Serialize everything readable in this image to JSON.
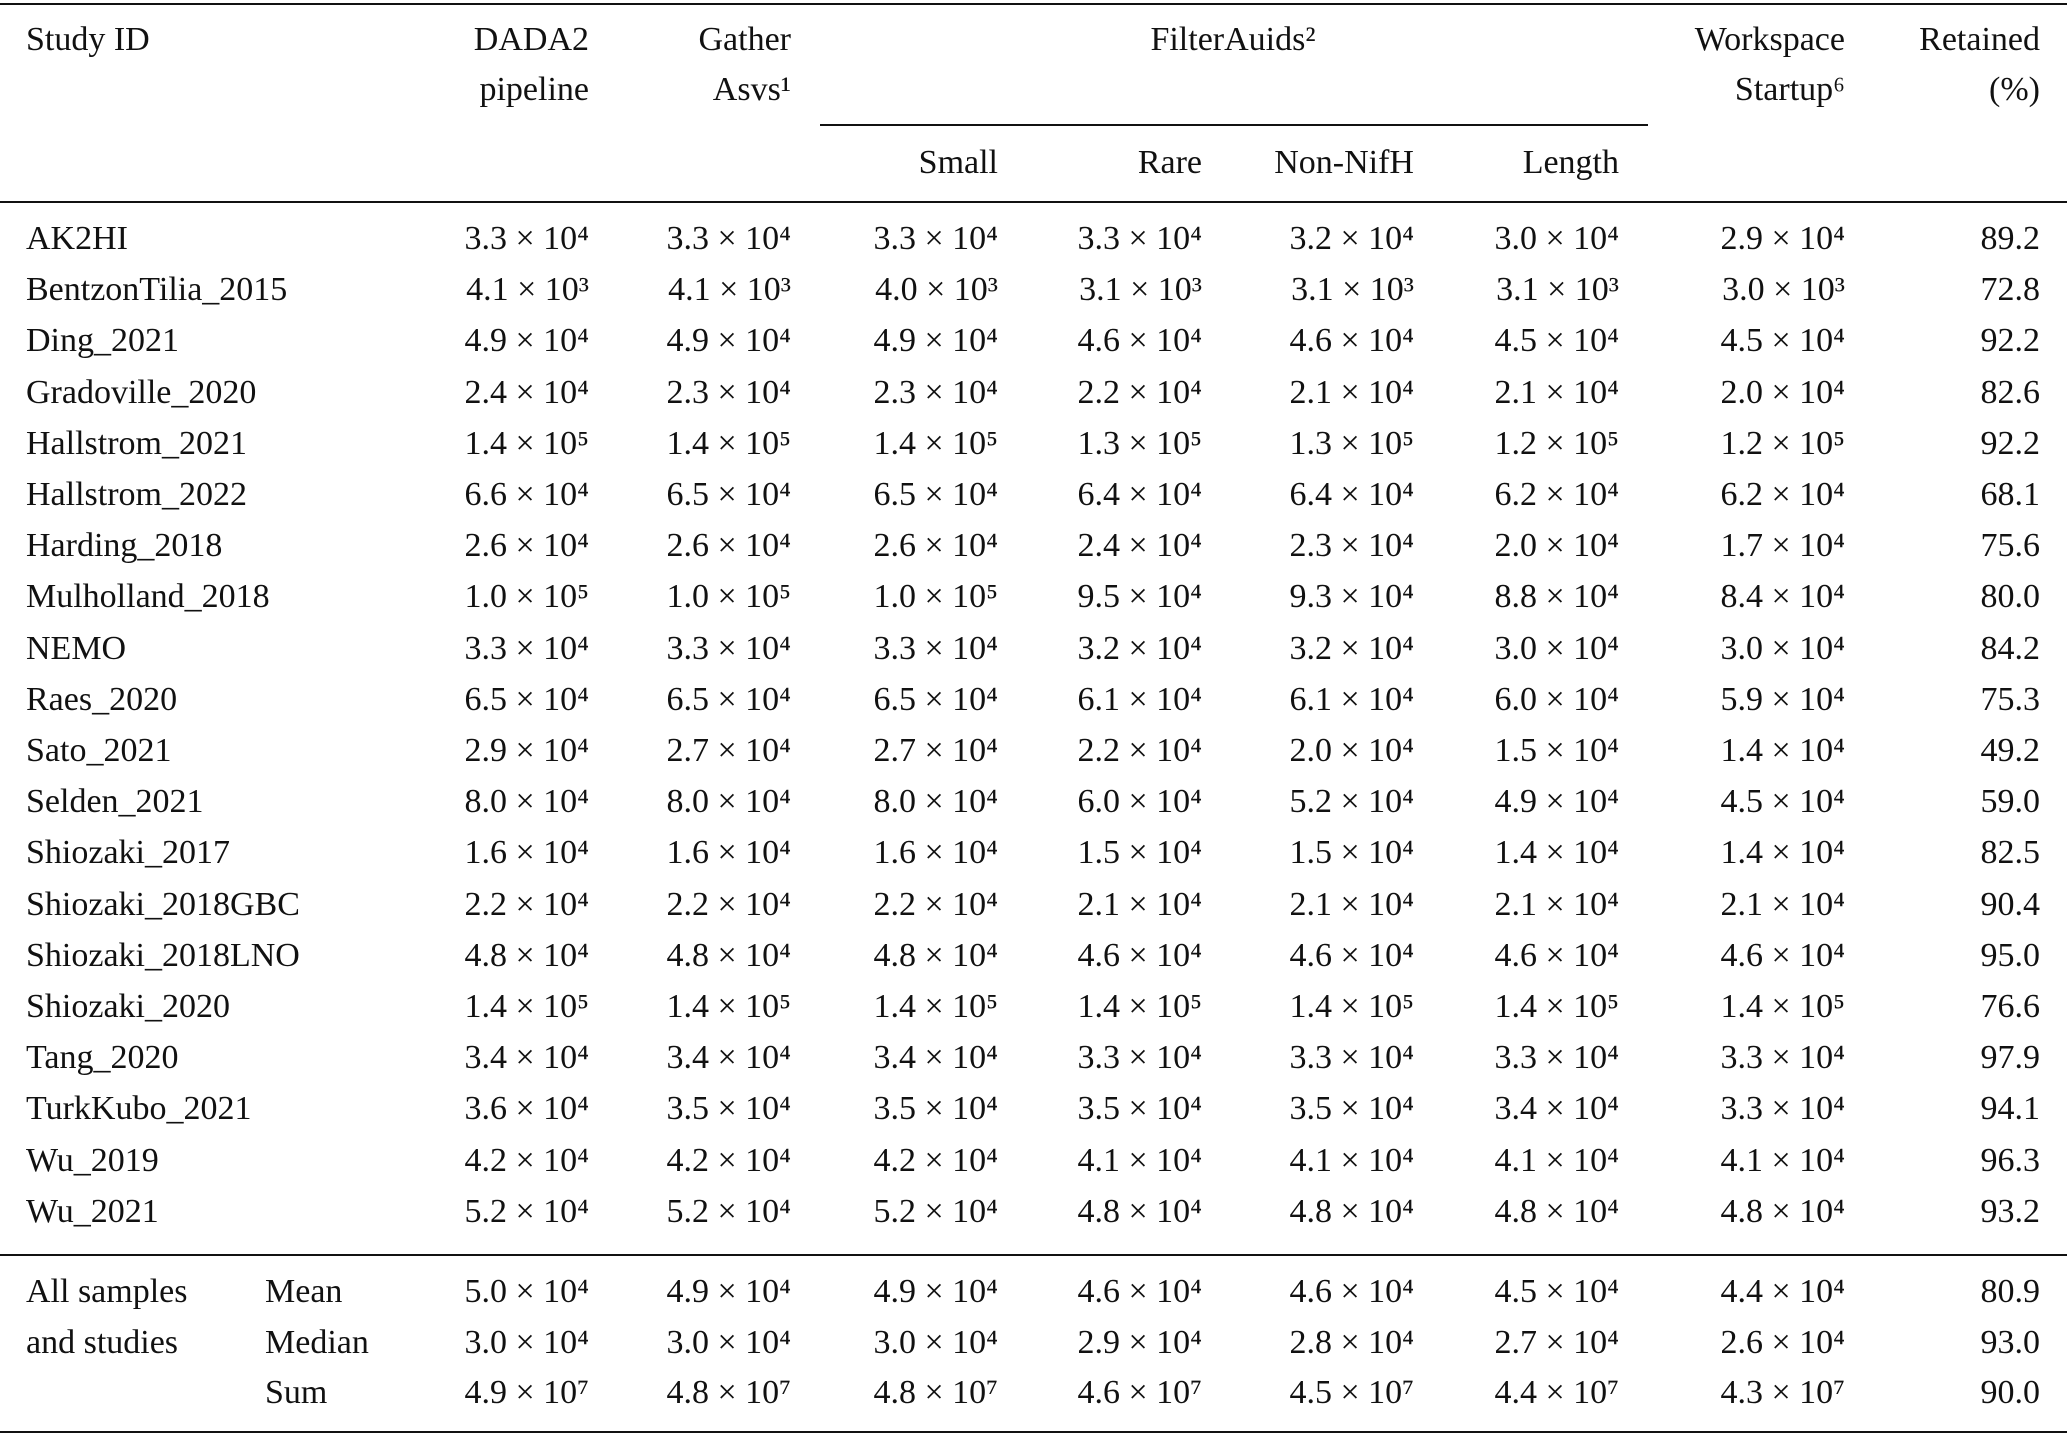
{
  "header": {
    "columns": [
      [
        "Study ID"
      ],
      [
        "DADA2",
        "pipeline"
      ],
      [
        "Gather",
        "Asvs¹"
      ],
      [
        "Workspace",
        "Startup⁶"
      ],
      [
        "Retained",
        "(%)"
      ]
    ],
    "group": "FilterAuids²",
    "subcolumns": [
      "Small",
      "Rare",
      "Non-NifH",
      "Length"
    ]
  },
  "table": {
    "rows": [
      [
        "AK2HI",
        "3.3 × 10⁴",
        "3.3 × 10⁴",
        "3.3 × 10⁴",
        "3.3 × 10⁴",
        "3.2 × 10⁴",
        "3.0 × 10⁴",
        "2.9 × 10⁴",
        "89.2"
      ],
      [
        "BentzonTilia_2015",
        "4.1 × 10³",
        "4.1 × 10³",
        "4.0 × 10³",
        "3.1 × 10³",
        "3.1 × 10³",
        "3.1 × 10³",
        "3.0 × 10³",
        "72.8"
      ],
      [
        "Ding_2021",
        "4.9 × 10⁴",
        "4.9 × 10⁴",
        "4.9 × 10⁴",
        "4.6 × 10⁴",
        "4.6 × 10⁴",
        "4.5 × 10⁴",
        "4.5 × 10⁴",
        "92.2"
      ],
      [
        "Gradoville_2020",
        "2.4 × 10⁴",
        "2.3 × 10⁴",
        "2.3 × 10⁴",
        "2.2 × 10⁴",
        "2.1 × 10⁴",
        "2.1 × 10⁴",
        "2.0 × 10⁴",
        "82.6"
      ],
      [
        "Hallstrom_2021",
        "1.4 × 10⁵",
        "1.4 × 10⁵",
        "1.4 × 10⁵",
        "1.3 × 10⁵",
        "1.3 × 10⁵",
        "1.2 × 10⁵",
        "1.2 × 10⁵",
        "92.2"
      ],
      [
        "Hallstrom_2022",
        "6.6 × 10⁴",
        "6.5 × 10⁴",
        "6.5 × 10⁴",
        "6.4 × 10⁴",
        "6.4 × 10⁴",
        "6.2 × 10⁴",
        "6.2 × 10⁴",
        "68.1"
      ],
      [
        "Harding_2018",
        "2.6 × 10⁴",
        "2.6 × 10⁴",
        "2.6 × 10⁴",
        "2.4 × 10⁴",
        "2.3 × 10⁴",
        "2.0 × 10⁴",
        "1.7 × 10⁴",
        "75.6"
      ],
      [
        "Mulholland_2018",
        "1.0 × 10⁵",
        "1.0 × 10⁵",
        "1.0 × 10⁵",
        "9.5 × 10⁴",
        "9.3 × 10⁴",
        "8.8 × 10⁴",
        "8.4 × 10⁴",
        "80.0"
      ],
      [
        "NEMO",
        "3.3 × 10⁴",
        "3.3 × 10⁴",
        "3.3 × 10⁴",
        "3.2 × 10⁴",
        "3.2 × 10⁴",
        "3.0 × 10⁴",
        "3.0 × 10⁴",
        "84.2"
      ],
      [
        "Raes_2020",
        "6.5 × 10⁴",
        "6.5 × 10⁴",
        "6.5 × 10⁴",
        "6.1 × 10⁴",
        "6.1 × 10⁴",
        "6.0 × 10⁴",
        "5.9 × 10⁴",
        "75.3"
      ],
      [
        "Sato_2021",
        "2.9 × 10⁴",
        "2.7 × 10⁴",
        "2.7 × 10⁴",
        "2.2 × 10⁴",
        "2.0 × 10⁴",
        "1.5 × 10⁴",
        "1.4 × 10⁴",
        "49.2"
      ],
      [
        "Selden_2021",
        "8.0 × 10⁴",
        "8.0 × 10⁴",
        "8.0 × 10⁴",
        "6.0 × 10⁴",
        "5.2 × 10⁴",
        "4.9 × 10⁴",
        "4.5 × 10⁴",
        "59.0"
      ],
      [
        "Shiozaki_2017",
        "1.6 × 10⁴",
        "1.6 × 10⁴",
        "1.6 × 10⁴",
        "1.5 × 10⁴",
        "1.5 × 10⁴",
        "1.4 × 10⁴",
        "1.4 × 10⁴",
        "82.5"
      ],
      [
        "Shiozaki_2018GBC",
        "2.2 × 10⁴",
        "2.2 × 10⁴",
        "2.2 × 10⁴",
        "2.1 × 10⁴",
        "2.1 × 10⁴",
        "2.1 × 10⁴",
        "2.1 × 10⁴",
        "90.4"
      ],
      [
        "Shiozaki_2018LNO",
        "4.8 × 10⁴",
        "4.8 × 10⁴",
        "4.8 × 10⁴",
        "4.6 × 10⁴",
        "4.6 × 10⁴",
        "4.6 × 10⁴",
        "4.6 × 10⁴",
        "95.0"
      ],
      [
        "Shiozaki_2020",
        "1.4 × 10⁵",
        "1.4 × 10⁵",
        "1.4 × 10⁵",
        "1.4 × 10⁵",
        "1.4 × 10⁵",
        "1.4 × 10⁵",
        "1.4 × 10⁵",
        "76.6"
      ],
      [
        "Tang_2020",
        "3.4 × 10⁴",
        "3.4 × 10⁴",
        "3.4 × 10⁴",
        "3.3 × 10⁴",
        "3.3 × 10⁴",
        "3.3 × 10⁴",
        "3.3 × 10⁴",
        "97.9"
      ],
      [
        "TurkKubo_2021",
        "3.6 × 10⁴",
        "3.5 × 10⁴",
        "3.5 × 10⁴",
        "3.5 × 10⁴",
        "3.5 × 10⁴",
        "3.4 × 10⁴",
        "3.3 × 10⁴",
        "94.1"
      ],
      [
        "Wu_2019",
        "4.2 × 10⁴",
        "4.2 × 10⁴",
        "4.2 × 10⁴",
        "4.1 × 10⁴",
        "4.1 × 10⁴",
        "4.1 × 10⁴",
        "4.1 × 10⁴",
        "96.3"
      ],
      [
        "Wu_2021",
        "5.2 × 10⁴",
        "5.2 × 10⁴",
        "5.2 × 10⁴",
        "4.8 × 10⁴",
        "4.8 × 10⁴",
        "4.8 × 10⁴",
        "4.8 × 10⁴",
        "93.2"
      ]
    ]
  },
  "summary": {
    "label": [
      "All samples",
      "and studies"
    ],
    "rows": [
      [
        "Mean",
        "5.0 × 10⁴",
        "4.9 × 10⁴",
        "4.9 × 10⁴",
        "4.6 × 10⁴",
        "4.6 × 10⁴",
        "4.5 × 10⁴",
        "4.4 × 10⁴",
        "80.9"
      ],
      [
        "Median",
        "3.0 × 10⁴",
        "3.0 × 10⁴",
        "3.0 × 10⁴",
        "2.9 × 10⁴",
        "2.8 × 10⁴",
        "2.7 × 10⁴",
        "2.6 × 10⁴",
        "93.0"
      ],
      [
        "Sum",
        "4.9 × 10⁷",
        "4.8 × 10⁷",
        "4.8 × 10⁷",
        "4.6 × 10⁷",
        "4.5 × 10⁷",
        "4.4 × 10⁷",
        "4.3 × 10⁷",
        "90.0"
      ]
    ]
  }
}
